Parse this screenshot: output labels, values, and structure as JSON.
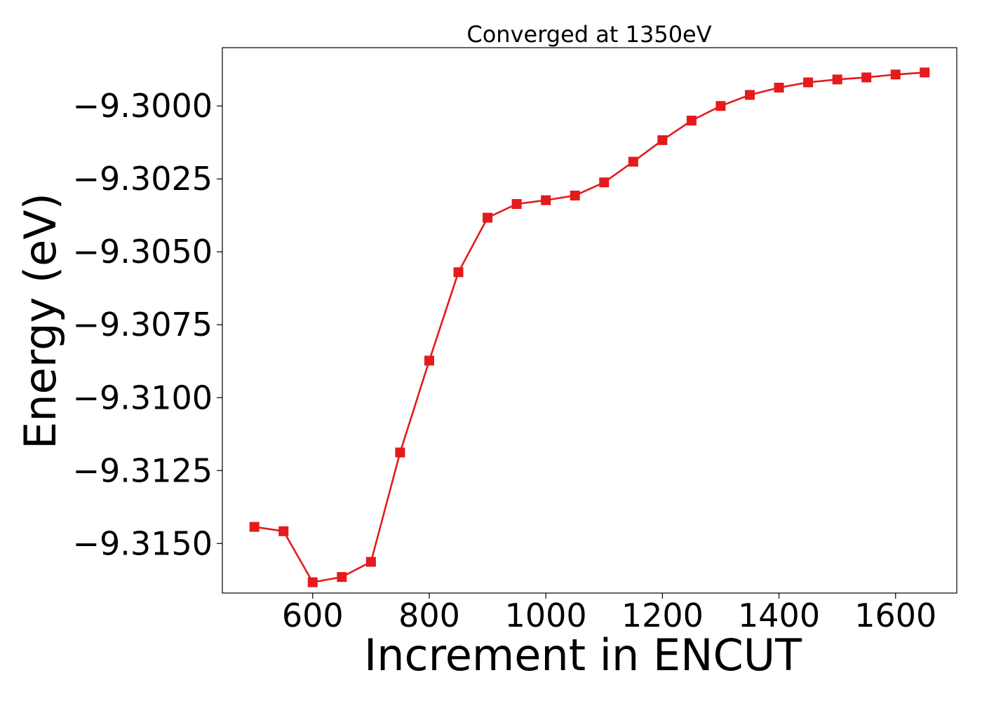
{
  "chart_data": {
    "type": "line",
    "title": "Converged at 1350eV",
    "xlabel": "Increment in ENCUT",
    "ylabel": "Energy (eV)",
    "xlim": [
      445,
      1705
    ],
    "ylim": [
      -9.3167,
      -9.298
    ],
    "xticks": [
      600,
      800,
      1000,
      1200,
      1400,
      1600
    ],
    "yticks": [
      -9.3,
      -9.3025,
      -9.305,
      -9.3075,
      -9.31,
      -9.3125,
      -9.315
    ],
    "ytick_labels": [
      "−9.3000",
      "−9.3025",
      "−9.3050",
      "−9.3075",
      "−9.3100",
      "−9.3125",
      "−9.3150"
    ],
    "grid": false,
    "series": [
      {
        "color": "#e41a1c",
        "marker": "square",
        "x": [
          500,
          550,
          600,
          650,
          700,
          750,
          800,
          850,
          900,
          950,
          1000,
          1050,
          1100,
          1150,
          1200,
          1250,
          1300,
          1350,
          1400,
          1450,
          1500,
          1550,
          1600,
          1650
        ],
        "y": [
          -9.31443,
          -9.31458,
          -9.31633,
          -9.31615,
          -9.31563,
          -9.31188,
          -9.30873,
          -9.3057,
          -9.30383,
          -9.30336,
          -9.30323,
          -9.30307,
          -9.30262,
          -9.30191,
          -9.30117,
          -9.3005,
          -9.3,
          -9.29962,
          -9.29937,
          -9.29919,
          -9.29909,
          -9.29902,
          -9.29892,
          -9.29885
        ]
      }
    ]
  }
}
